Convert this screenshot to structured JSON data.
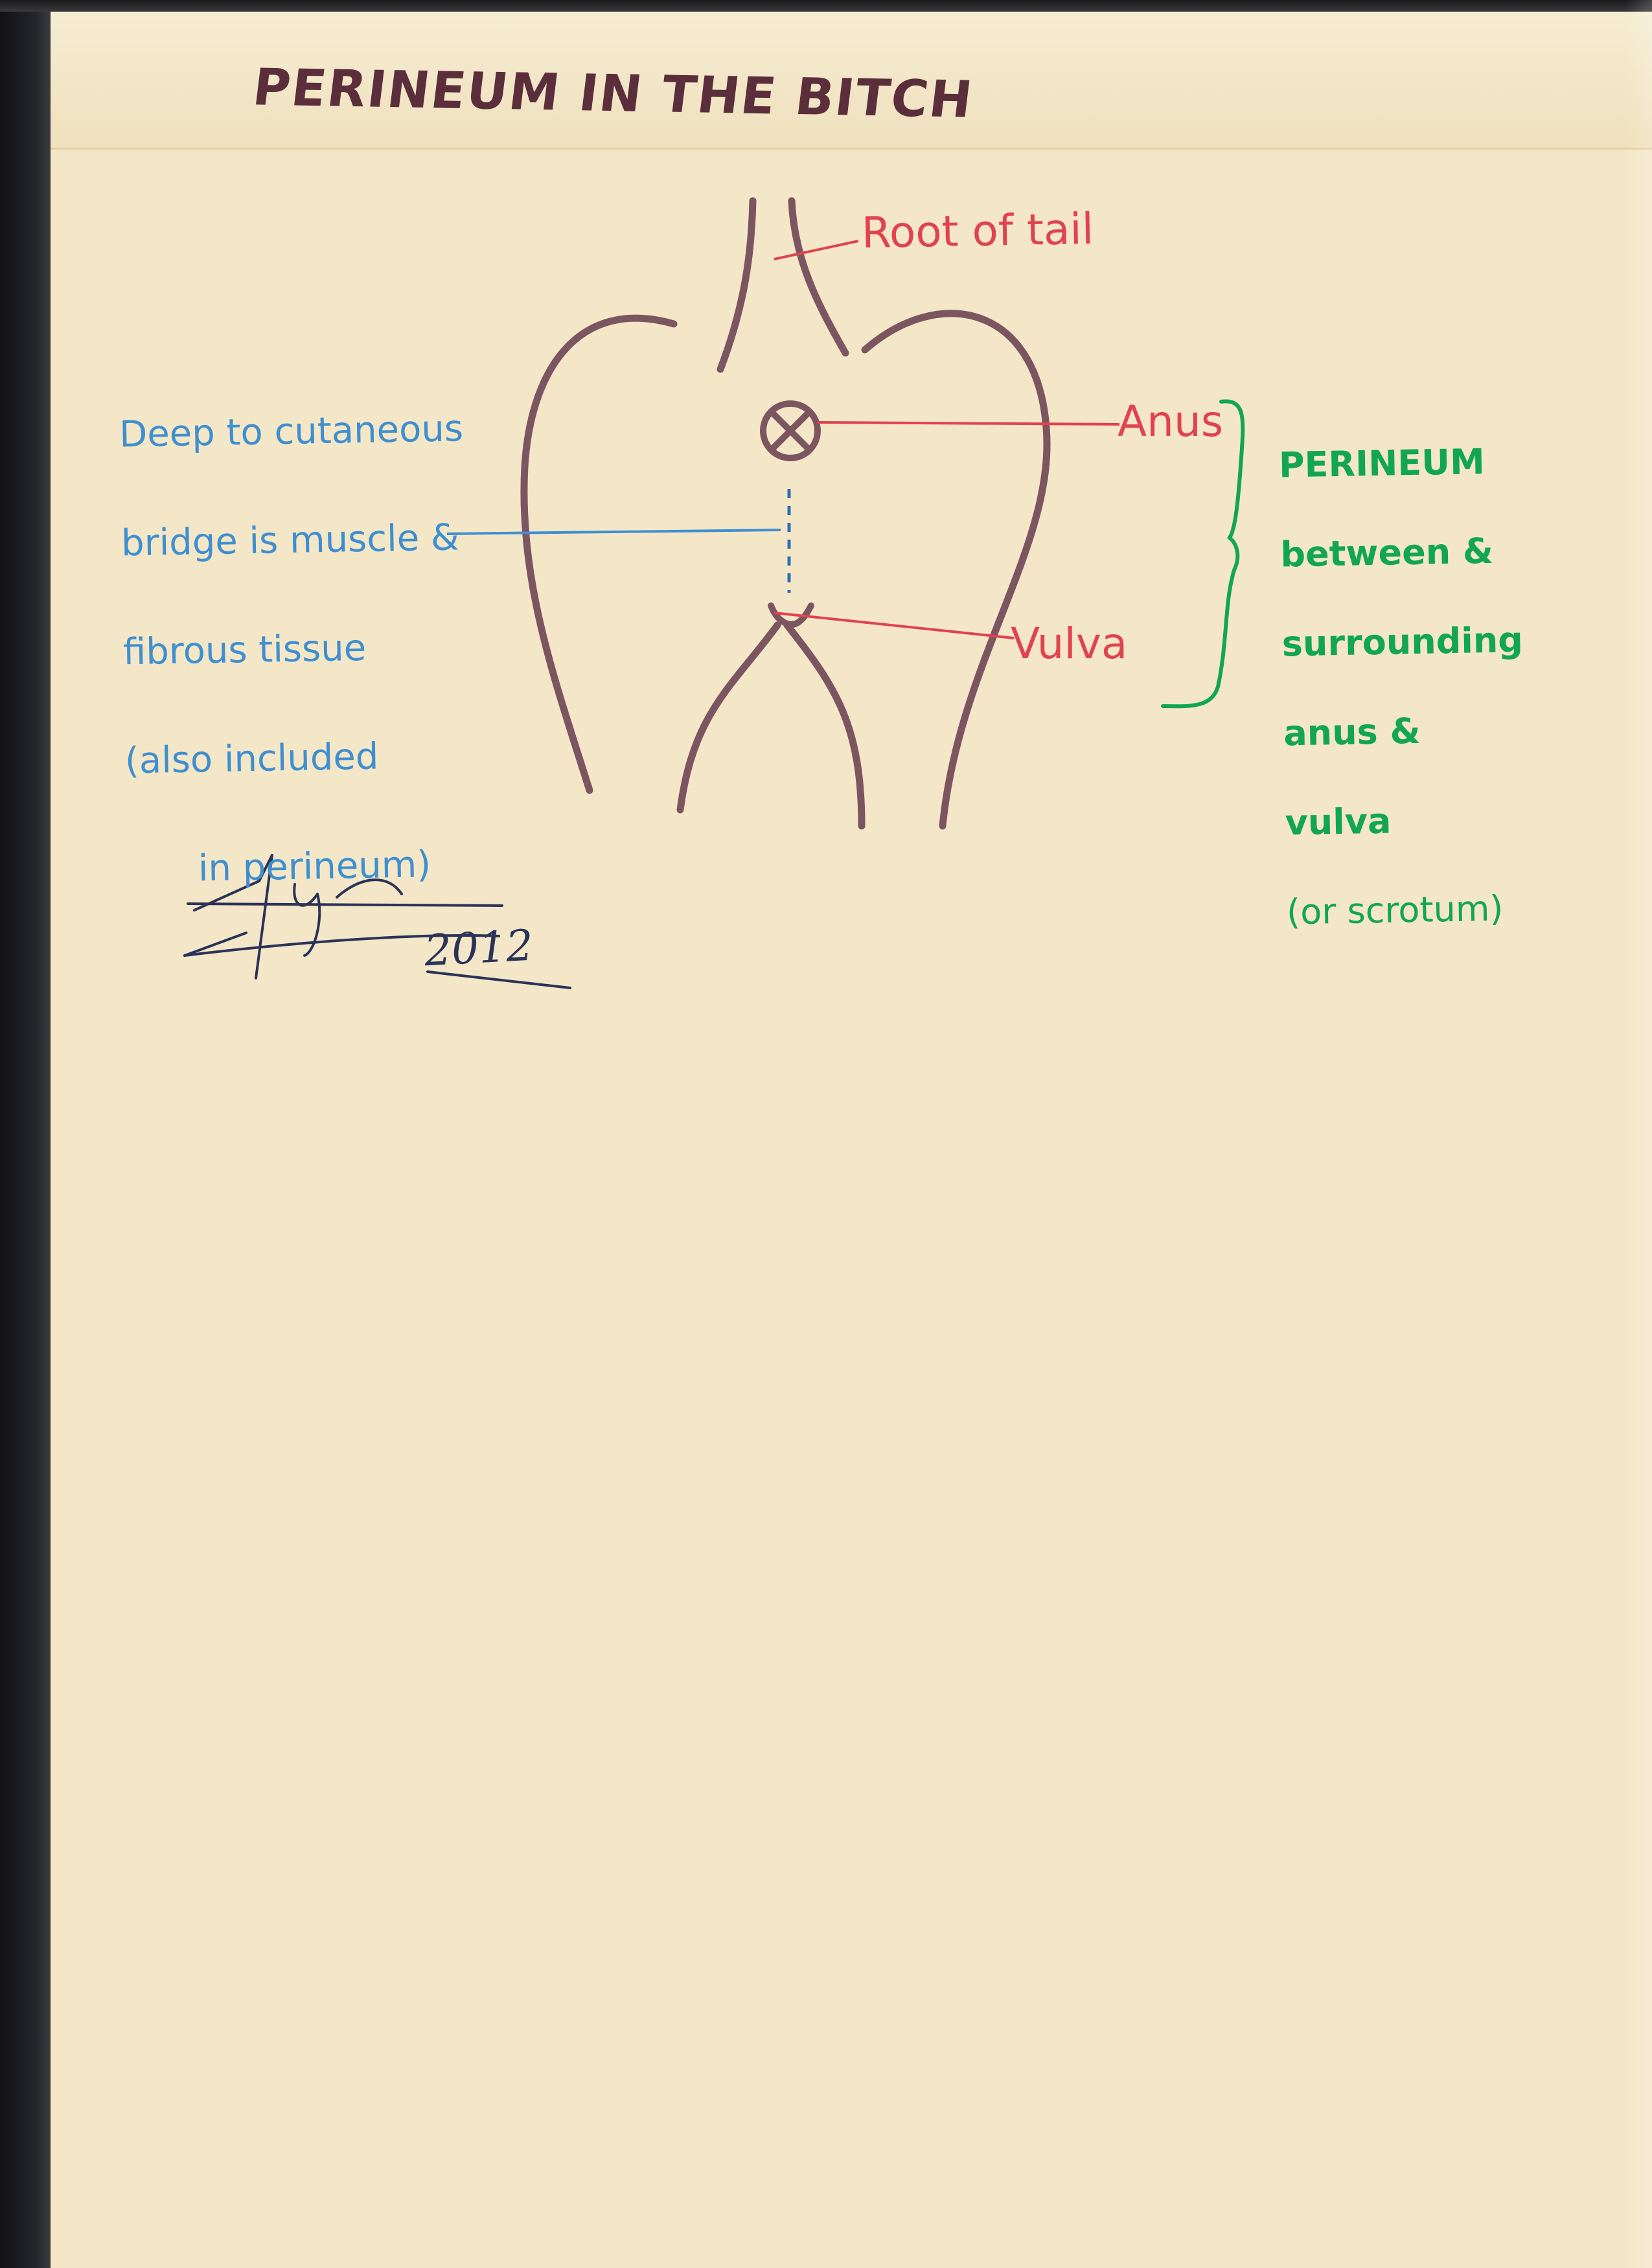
{
  "title": "PERINEUM  IN THE BITCH",
  "labels": {
    "root_of_tail": "Root of tail",
    "anus": "Anus",
    "vulva": "Vulva"
  },
  "notes": {
    "deep_tissue": [
      "Deep to cutaneous",
      "bridge is muscle &",
      "fibrous tissue",
      "(also included",
      "in perineum)"
    ],
    "perineum_heading": "PERINEUM",
    "perineum_body": [
      "between &",
      "surrounding",
      "anus &",
      "vulva",
      "(or scrotum)"
    ]
  },
  "signature": {
    "year": "2012"
  },
  "colors": {
    "paper": "#f4e7c8",
    "outline": "#7b5560",
    "title": "#5a2e3a",
    "red_labels": "#e0434f",
    "blue_notes": "#3f8fd0",
    "green_notes": "#12a652",
    "signature_ink": "#2a3358"
  }
}
